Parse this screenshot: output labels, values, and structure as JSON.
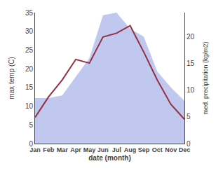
{
  "chart_data": {
    "type": "line",
    "categories": [
      "Jan",
      "Feb",
      "Mar",
      "Apr",
      "May",
      "Jun",
      "Jul",
      "Aug",
      "Sep",
      "Oct",
      "Nov",
      "Dec"
    ],
    "series": [
      {
        "type": "line",
        "color": "#943040",
        "values": [
          7.0,
          12.5,
          17.0,
          22.5,
          21.5,
          28.5,
          29.5,
          31.5,
          24.5,
          17.0,
          10.5,
          6.5
        ]
      },
      {
        "type": "area",
        "axis": "y2",
        "color": "#c0c8f0",
        "values": [
          8.5,
          8.5,
          9.0,
          12.5,
          16.0,
          24.0,
          24.5,
          21.5,
          20.0,
          13.5,
          10.5,
          8.0
        ]
      }
    ],
    "xlabel": "date (month)",
    "ylabel": "max temp (C)",
    "y2label": "med. precipitation (kg/m2)",
    "ylim": [
      0,
      35
    ],
    "yticks": [
      0,
      5,
      10,
      15,
      20,
      25,
      30,
      35
    ],
    "y2lim": [
      0,
      24.5
    ],
    "y2ticks": [
      0,
      5,
      10,
      15,
      20
    ],
    "grid": false
  }
}
